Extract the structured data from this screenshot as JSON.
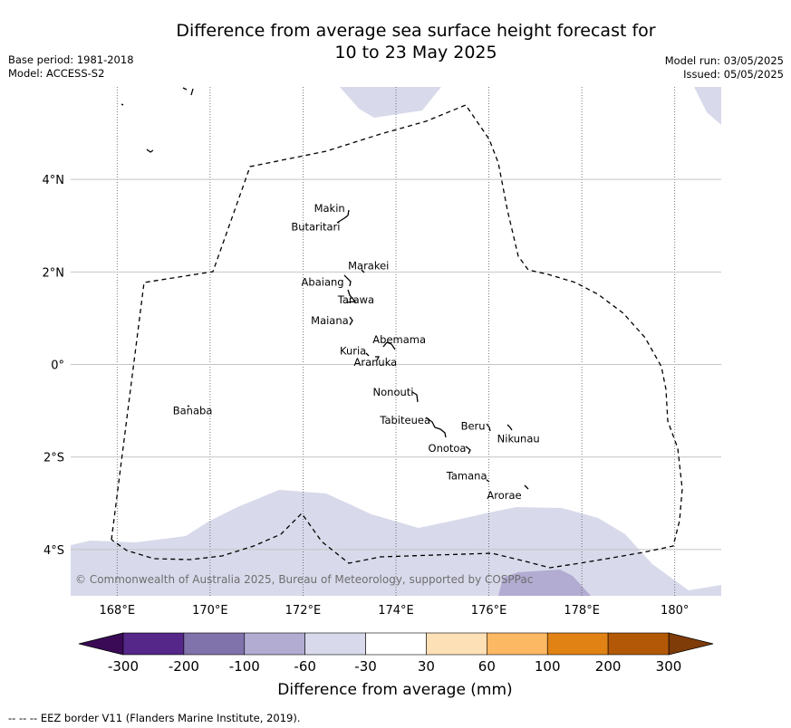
{
  "title_line1": "Difference from average sea surface height forecast for",
  "title_line2": "10 to 23 May 2025",
  "base_period": "Base period: 1981-2018",
  "model": "Model: ACCESS-S2",
  "model_run": "Model run: 03/05/2025",
  "issued": "Issued: 05/05/2025",
  "map": {
    "lon_range": [
      167,
      181
    ],
    "lat_range": [
      -5,
      6
    ],
    "lon_ticks": [
      {
        "value": 168,
        "label": "168°E"
      },
      {
        "value": 170,
        "label": "170°E"
      },
      {
        "value": 172,
        "label": "172°E"
      },
      {
        "value": 174,
        "label": "174°E"
      },
      {
        "value": 176,
        "label": "176°E"
      },
      {
        "value": 178,
        "label": "178°E"
      },
      {
        "value": 180,
        "label": "180°"
      }
    ],
    "lat_ticks": [
      {
        "value": 4,
        "label": "4°N"
      },
      {
        "value": 2,
        "label": "2°N"
      },
      {
        "value": 0,
        "label": "0°"
      },
      {
        "value": -2,
        "label": "2°S"
      },
      {
        "value": -4,
        "label": "4°S"
      }
    ],
    "islands": [
      {
        "name": "Makin",
        "lon": 172.98,
        "lat": 3.2
      },
      {
        "name": "Butaritari",
        "lon": 172.8,
        "lat": 3.05
      },
      {
        "name": "Marakei",
        "lon": 173.3,
        "lat": 2.0
      },
      {
        "name": "Abaiang",
        "lon": 172.9,
        "lat": 1.8
      },
      {
        "name": "Tarawa",
        "lon": 173.0,
        "lat": 1.4
      },
      {
        "name": "Maiana",
        "lon": 173.0,
        "lat": 0.95
      },
      {
        "name": "Abemama",
        "lon": 173.85,
        "lat": 0.42
      },
      {
        "name": "Kuria",
        "lon": 173.4,
        "lat": 0.22
      },
      {
        "name": "Aranuka",
        "lon": 173.6,
        "lat": 0.17
      },
      {
        "name": "Nonouti",
        "lon": 174.4,
        "lat": -0.65
      },
      {
        "name": "Beru",
        "lon": 176.0,
        "lat": -1.33
      },
      {
        "name": "Nikunau",
        "lon": 176.45,
        "lat": -1.35
      },
      {
        "name": "Tabiteuea",
        "lon": 174.8,
        "lat": -1.2
      },
      {
        "name": "Onotoa",
        "lon": 175.55,
        "lat": -1.85
      },
      {
        "name": "Tamana",
        "lon": 175.98,
        "lat": -2.5
      },
      {
        "name": "Arorae",
        "lon": 176.82,
        "lat": -2.65
      },
      {
        "name": "Banaba",
        "lon": 169.53,
        "lat": -0.86
      }
    ],
    "copyright": "© Commonwealth of Australia 2025, Bureau of Meteorology, supported by COSPPac"
  },
  "colorbar": {
    "title": "Difference from average (mm)",
    "boundaries": [
      "-300",
      "-200",
      "-100",
      "-60",
      "-30",
      "30",
      "60",
      "100",
      "200",
      "300"
    ],
    "under_color": "#3a0a56",
    "over_color": "#7f3b08",
    "colors": [
      "#542788",
      "#8073ac",
      "#b2abd2",
      "#d8daeb",
      "#ffffff",
      "#fee0b6",
      "#fdb863",
      "#e08214",
      "#b35806"
    ]
  },
  "footer": "--  --  -- EEZ border V11 (Flanders Marine Institute, 2019)."
}
